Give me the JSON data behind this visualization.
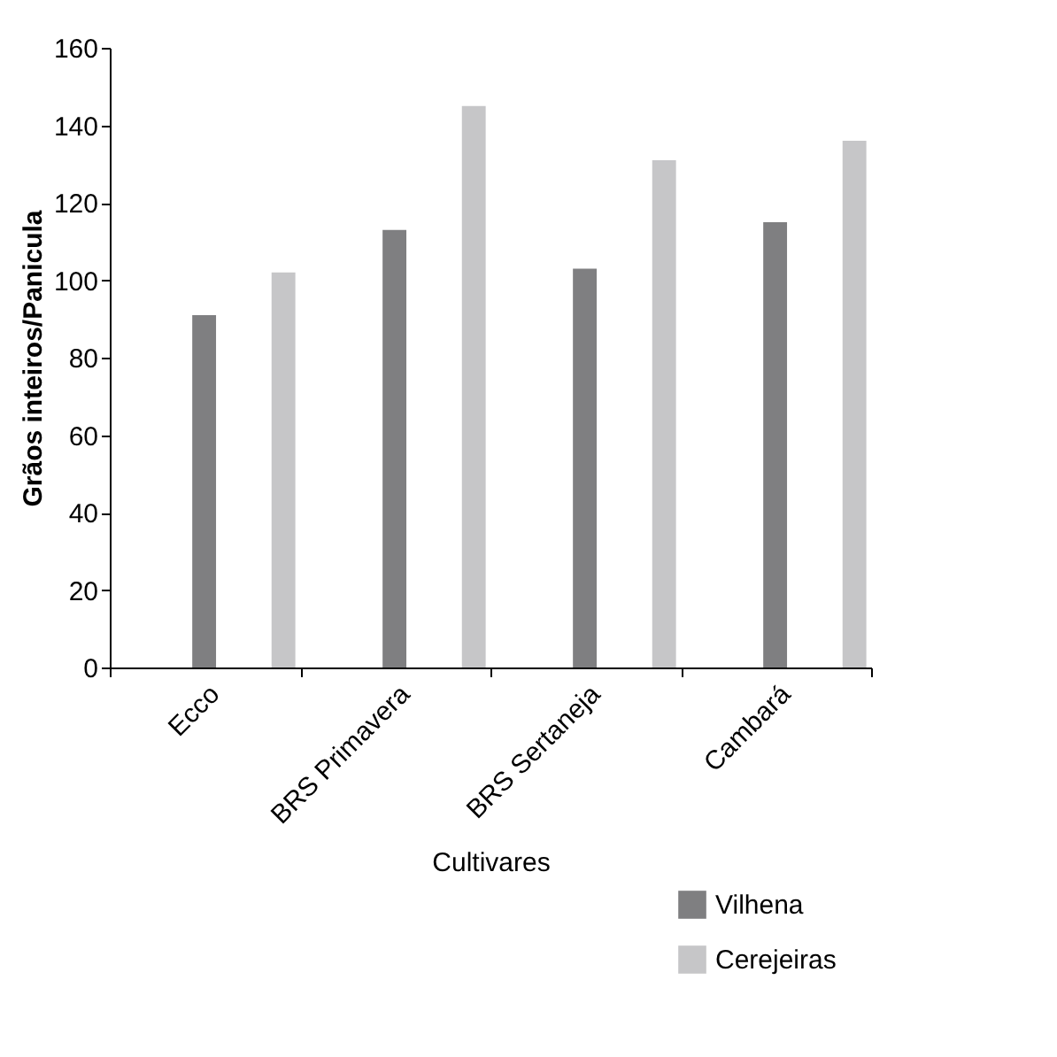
{
  "chart_data": {
    "type": "bar",
    "xlabel": "Cultivares",
    "ylabel": "Grãos inteiros/Panicula",
    "categories": [
      "Ecco",
      "BRS Primavera",
      "BRS Sertaneja",
      "Cambará"
    ],
    "series": [
      {
        "name": "Vilhena",
        "color": "#7f7f81",
        "values": [
          91,
          113,
          103,
          115
        ]
      },
      {
        "name": "Cerejeiras",
        "color": "#c6c6c8",
        "values": [
          102,
          145,
          131,
          136
        ]
      }
    ],
    "ylim": [
      0,
      160
    ],
    "yticks": [
      0,
      20,
      40,
      60,
      80,
      100,
      120,
      140,
      160
    ],
    "grid": false,
    "legend": "bottom right"
  }
}
